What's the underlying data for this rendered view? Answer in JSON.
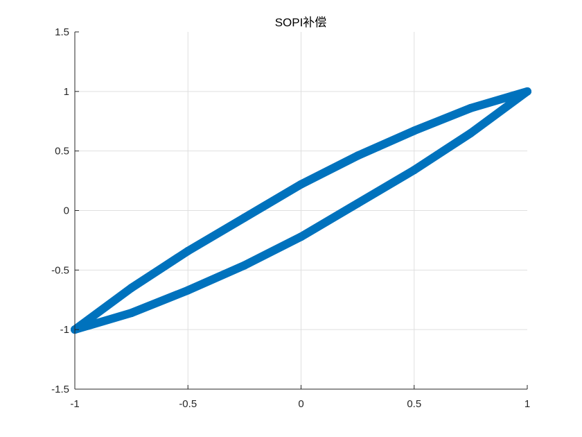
{
  "chart_data": {
    "type": "line",
    "title": "SOPI补偿",
    "xlabel": "",
    "ylabel": "",
    "xlim": [
      -1,
      1
    ],
    "ylim": [
      -1.5,
      1.5
    ],
    "x_ticks": [
      -1,
      -0.5,
      0,
      0.5,
      1
    ],
    "y_ticks": [
      -1.5,
      -1,
      -0.5,
      0,
      0.5,
      1,
      1.5
    ],
    "x_tick_labels": [
      "-1",
      "-0.5",
      "0",
      "0.5",
      "1"
    ],
    "y_tick_labels": [
      "-1.5",
      "-1",
      "-0.5",
      "0",
      "0.5",
      "1",
      "1.5"
    ],
    "grid": true,
    "series": [
      {
        "color": "#0072BD",
        "x": [
          -1,
          -0.75,
          -0.5,
          -0.25,
          0,
          0.25,
          0.5,
          0.75,
          1,
          0.75,
          0.5,
          0.25,
          0,
          -0.25,
          -0.5,
          -0.75,
          -1
        ],
        "y": [
          -1,
          -0.65,
          -0.34,
          -0.06,
          0.22,
          0.46,
          0.67,
          0.86,
          1,
          0.65,
          0.34,
          0.06,
          -0.22,
          -0.46,
          -0.67,
          -0.86,
          -1
        ]
      }
    ]
  }
}
